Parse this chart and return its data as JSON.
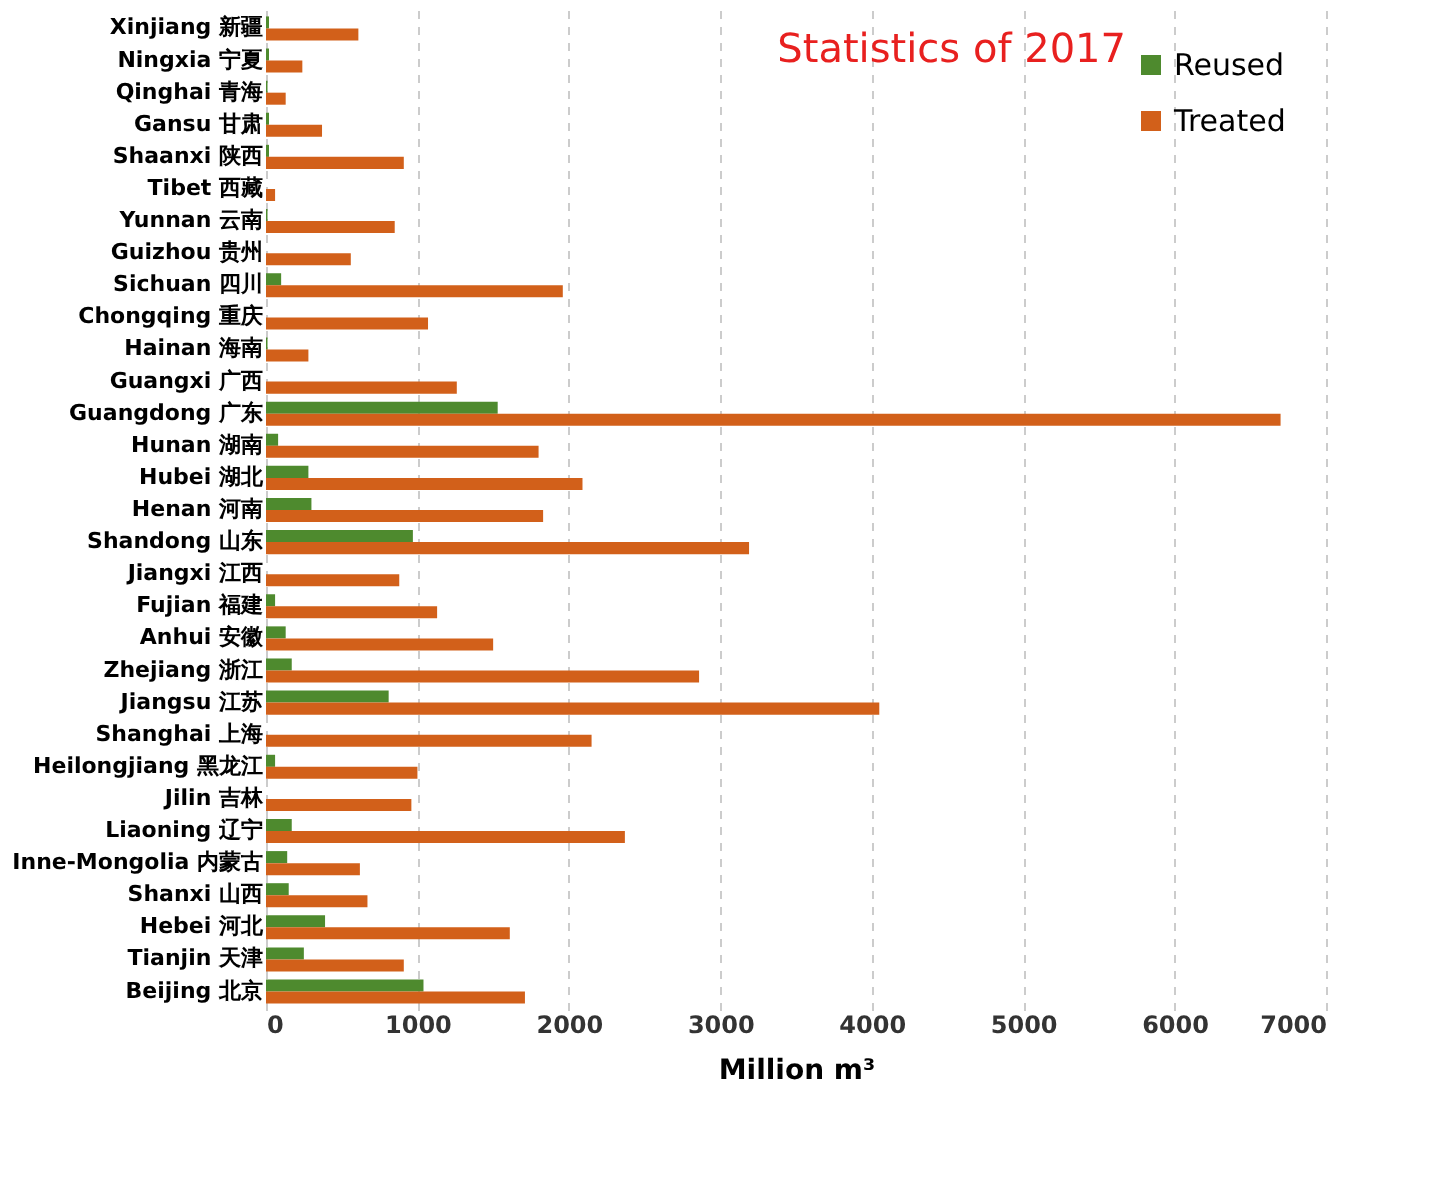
{
  "chart_data": {
    "type": "bar",
    "orientation": "horizontal",
    "title": "Statistics of 2017",
    "xlabel": "Million m³",
    "categories": [
      "Xinjiang 新疆",
      "Ningxia 宁夏",
      "Qinghai 青海",
      "Gansu 甘肃",
      "Shaanxi 陕西",
      "Tibet 西藏",
      "Yunnan 云南",
      "Guizhou 贵州",
      "Sichuan 四川",
      "Chongqing 重庆",
      "Hainan 海南",
      "Guangxi 广西",
      "Guangdong 广东",
      "Hunan 湖南",
      "Hubei 湖北",
      "Henan 河南",
      "Shandong 山东",
      "Jiangxi 江西",
      "Fujian 福建",
      "Anhui 安徽",
      "Zhejiang 浙江",
      "Jiangsu 江苏",
      "Shanghai 上海",
      "Heilongjiang 黑龙江",
      "Jilin 吉林",
      "Liaoning 辽宁",
      "Inne-Mongolia 内蒙古",
      "Shanxi 山西",
      "Hebei 河北",
      "Tianjin 天津",
      "Beijing 北京"
    ],
    "series": [
      {
        "name": "Reused",
        "color": "#4e8a2e",
        "values": [
          20,
          20,
          10,
          20,
          20,
          0,
          10,
          0,
          100,
          0,
          10,
          0,
          1530,
          80,
          280,
          300,
          970,
          0,
          60,
          130,
          170,
          810,
          0,
          60,
          0,
          170,
          140,
          150,
          390,
          250,
          1040
        ]
      },
      {
        "name": "Treated",
        "color": "#d2601a",
        "values": [
          610,
          240,
          130,
          370,
          910,
          60,
          850,
          560,
          1960,
          1070,
          280,
          1260,
          6700,
          1800,
          2090,
          1830,
          3190,
          880,
          1130,
          1500,
          2860,
          4050,
          2150,
          1000,
          960,
          2370,
          620,
          670,
          1610,
          910,
          1710
        ]
      }
    ],
    "xlim": [
      0,
      7000
    ],
    "xticks": [
      0,
      1000,
      2000,
      3000,
      4000,
      5000,
      6000,
      7000
    ],
    "grid": "x",
    "legend": "top right"
  }
}
